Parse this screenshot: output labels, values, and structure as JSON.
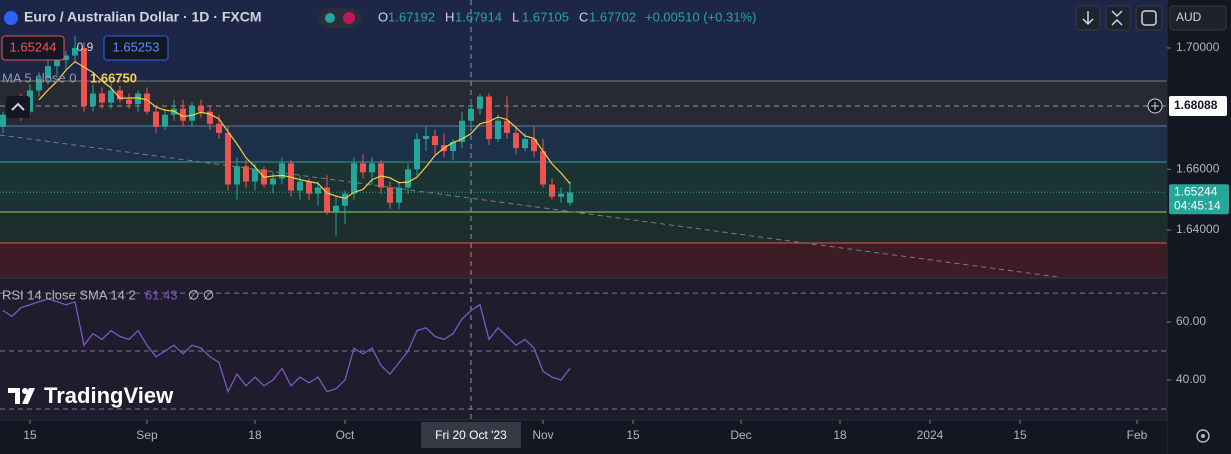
{
  "chart_data": {
    "type": "candlestick",
    "title": "Euro / Australian Dollar · 1D · FXCM",
    "x": [
      -3,
      -2,
      -1,
      0,
      1,
      2,
      3,
      4,
      5,
      6,
      7,
      8,
      9,
      10,
      11,
      12,
      13,
      14,
      15,
      16,
      17,
      18,
      19,
      20,
      21,
      22,
      23,
      24,
      25,
      26,
      27,
      28,
      29,
      30,
      31,
      32,
      33,
      34,
      35,
      36,
      37,
      38,
      39,
      40,
      41,
      42,
      43,
      44,
      45,
      46,
      47,
      48,
      49,
      50,
      51,
      52,
      53,
      54,
      55,
      56,
      57,
      58,
      59,
      60
    ],
    "open": [
      1.674,
      1.678,
      1.6815,
      1.679,
      1.686,
      1.69,
      1.694,
      1.696,
      1.6975,
      1.7,
      1.681,
      1.685,
      1.682,
      1.686,
      1.683,
      1.6815,
      1.685,
      1.679,
      1.674,
      1.678,
      1.68,
      1.676,
      1.681,
      1.679,
      1.675,
      1.672,
      1.655,
      1.661,
      1.656,
      1.66,
      1.655,
      1.657,
      1.662,
      1.653,
      1.656,
      1.652,
      1.654,
      1.646,
      1.648,
      1.652,
      1.662,
      1.659,
      1.662,
      1.654,
      1.649,
      1.654,
      1.66,
      1.67,
      1.671,
      1.668,
      1.666,
      1.669,
      1.676,
      1.68,
      1.684,
      1.67,
      1.676,
      1.672,
      1.667,
      1.67,
      1.666,
      1.655,
      1.651,
      1.649
    ],
    "high": [
      1.679,
      1.683,
      1.685,
      1.688,
      1.692,
      1.696,
      1.699,
      1.699,
      1.704,
      1.702,
      1.688,
      1.687,
      1.689,
      1.6875,
      1.685,
      1.686,
      1.687,
      1.681,
      1.68,
      1.683,
      1.683,
      1.682,
      1.683,
      1.681,
      1.678,
      1.674,
      1.664,
      1.663,
      1.662,
      1.661,
      1.659,
      1.664,
      1.663,
      1.658,
      1.657,
      1.656,
      1.658,
      1.651,
      1.653,
      1.664,
      1.665,
      1.664,
      1.663,
      1.656,
      1.656,
      1.662,
      1.672,
      1.674,
      1.673,
      1.672,
      1.67,
      1.679,
      1.683,
      1.685,
      1.685,
      1.678,
      1.684,
      1.674,
      1.672,
      1.674,
      1.67,
      1.657,
      1.654,
      1.656
    ],
    "low": [
      1.672,
      1.677,
      1.676,
      1.678,
      1.684,
      1.688,
      1.691,
      1.693,
      1.695,
      1.679,
      1.679,
      1.68,
      1.68,
      1.682,
      1.68,
      1.679,
      1.678,
      1.672,
      1.673,
      1.676,
      1.674,
      1.674,
      1.677,
      1.673,
      1.67,
      1.653,
      1.65,
      1.654,
      1.653,
      1.654,
      1.652,
      1.655,
      1.651,
      1.65,
      1.65,
      1.648,
      1.645,
      1.638,
      1.642,
      1.65,
      1.657,
      1.655,
      1.652,
      1.647,
      1.647,
      1.652,
      1.658,
      1.666,
      1.665,
      1.664,
      1.663,
      1.667,
      1.673,
      1.678,
      1.668,
      1.669,
      1.67,
      1.665,
      1.666,
      1.664,
      1.654,
      1.65,
      1.649,
      1.648
    ],
    "close": [
      1.678,
      1.6815,
      1.679,
      1.686,
      1.69,
      1.694,
      1.696,
      1.6975,
      1.7,
      1.681,
      1.685,
      1.682,
      1.686,
      1.683,
      1.6815,
      1.685,
      1.679,
      1.674,
      1.678,
      1.68,
      1.676,
      1.681,
      1.679,
      1.675,
      1.672,
      1.655,
      1.661,
      1.656,
      1.66,
      1.655,
      1.657,
      1.662,
      1.653,
      1.656,
      1.652,
      1.654,
      1.646,
      1.648,
      1.652,
      1.662,
      1.659,
      1.662,
      1.654,
      1.649,
      1.654,
      1.66,
      1.67,
      1.671,
      1.668,
      1.666,
      1.669,
      1.676,
      1.68,
      1.684,
      1.67,
      1.676,
      1.672,
      1.667,
      1.67,
      1.666,
      1.655,
      1.651,
      1.652,
      1.6524
    ],
    "up_color": "#26a69a",
    "down_color": "#ef5350",
    "ma": {
      "name": "MA 5 close 0",
      "value_label": "1.66750",
      "color": "#f5d04a",
      "values": [
        null,
        null,
        null,
        null,
        1.6829,
        1.6861,
        1.689,
        1.6927,
        1.6955,
        1.6937,
        1.6919,
        1.6891,
        1.6868,
        1.6834,
        1.6835,
        1.6835,
        1.6829,
        1.6805,
        1.6795,
        1.6792,
        1.6774,
        1.6778,
        1.6788,
        1.6782,
        1.6766,
        1.6724,
        1.6684,
        1.6638,
        1.6608,
        1.6574,
        1.6578,
        1.658,
        1.6574,
        1.6566,
        1.656,
        1.6554,
        1.6522,
        1.6512,
        1.6504,
        1.6524,
        1.6534,
        1.6566,
        1.6578,
        1.6572,
        1.6556,
        1.6558,
        1.6574,
        1.6608,
        1.6646,
        1.667,
        1.6688,
        1.67,
        1.6718,
        1.675,
        1.6758,
        1.6772,
        1.6764,
        1.6738,
        1.671,
        1.6702,
        1.666,
        1.6618,
        1.6588,
        1.6553
      ]
    },
    "rsi": {
      "name": "RSI 14 close SMA 14 2",
      "value_label": "61.43",
      "extra": "∅ ∅",
      "color": "#7e57c2",
      "values": [
        64,
        62,
        65,
        66,
        67,
        68,
        67,
        66,
        67,
        52,
        56,
        54,
        57,
        55,
        54,
        57,
        52,
        48,
        50,
        52,
        49,
        52,
        51,
        48,
        46,
        36,
        42,
        38,
        41,
        38,
        40,
        44,
        38,
        41,
        39,
        41,
        36,
        37,
        40,
        51,
        49,
        51,
        45,
        42,
        46,
        50,
        57,
        58,
        55,
        54,
        56,
        61,
        64,
        66,
        54,
        58,
        55,
        52,
        54,
        51,
        43,
        41,
        40,
        44
      ],
      "ylim": [
        26.2,
        75.2
      ],
      "yticks": [
        {
          "value": 60,
          "label": "60.00"
        },
        {
          "value": 40,
          "label": "40.00"
        }
      ],
      "levels": [
        70,
        50,
        30
      ]
    },
    "xlim": [
      -3.33,
      126.33
    ],
    "xticks": [
      {
        "value": 0,
        "label": "15"
      },
      {
        "value": 13,
        "label": "Sep"
      },
      {
        "value": 25,
        "label": "18"
      },
      {
        "value": 35,
        "label": "Oct"
      },
      {
        "value": 57,
        "label": "Nov"
      },
      {
        "value": 67,
        "label": "15"
      },
      {
        "value": 79,
        "label": "Dec"
      },
      {
        "value": 90,
        "label": "18"
      },
      {
        "value": 100,
        "label": "2024"
      },
      {
        "value": 110,
        "label": "15"
      },
      {
        "value": 123,
        "label": "Feb"
      }
    ],
    "ylim": [
      1.6242,
      1.7158
    ],
    "yticks": [
      {
        "value": 1.7,
        "label": "1.70000"
      },
      {
        "value": 1.66,
        "label": "1.66000"
      },
      {
        "value": 1.64,
        "label": "1.64000"
      }
    ],
    "crosshair": {
      "x": 49,
      "y": 1.68088,
      "date": "Fri 20 Oct '23"
    },
    "last_price": 1.65244,
    "countdown": "04:45:14",
    "currency": "AUD"
  },
  "header": {
    "ohlc": [
      {
        "key": "O",
        "value": "1.67192"
      },
      {
        "key": "H",
        "value": "1.67914"
      },
      {
        "key": "L",
        "value": "1.67105"
      },
      {
        "key": "C",
        "value": "1.67702"
      }
    ],
    "change": "+0.00510 (+0.31%)"
  },
  "trade": {
    "sell": "1.65244",
    "spread": "0.9",
    "buy": "1.65253"
  },
  "logo": "TradingView"
}
